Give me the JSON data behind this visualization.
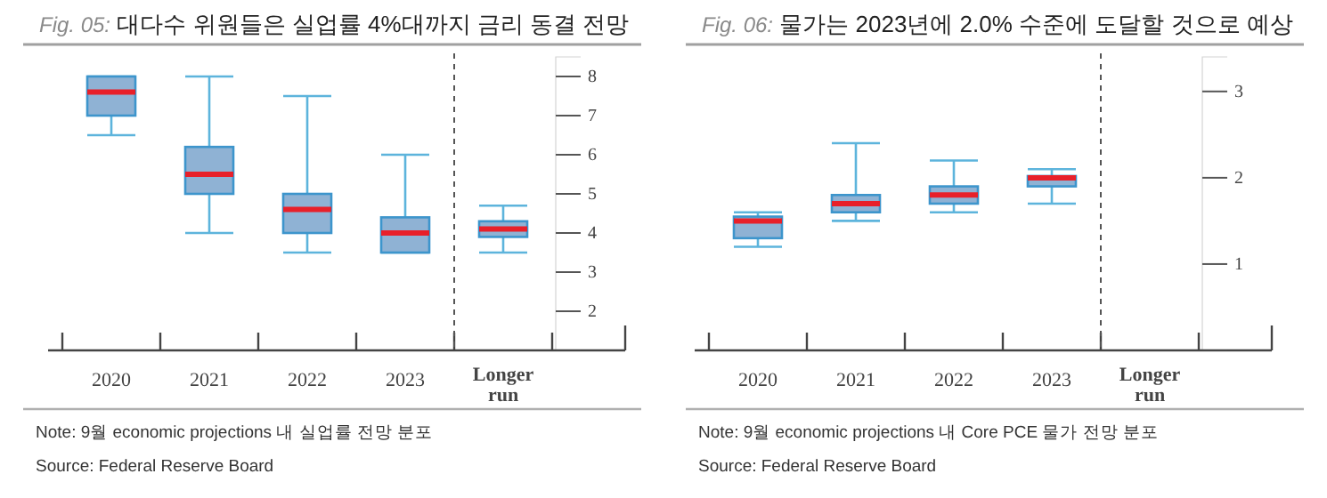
{
  "chart_data": [
    {
      "type": "box",
      "title": "Fig. 05: 대다수 위원들은 실업률 4%대까지 금리 동결 전망",
      "categories": [
        "2020",
        "2021",
        "2022",
        "2023",
        "Longer run"
      ],
      "ylim": [
        1,
        8.5
      ],
      "yticks": [
        2,
        3,
        4,
        5,
        6,
        7,
        8
      ],
      "grid": false,
      "series": [
        {
          "color": "#8fb2d4",
          "boxes": [
            {
              "low": 6.5,
              "q1": 7.0,
              "median": 7.6,
              "q3": 8.0,
              "high": 8.0
            },
            {
              "low": 4.0,
              "q1": 5.0,
              "median": 5.5,
              "q3": 6.2,
              "high": 8.0
            },
            {
              "low": 3.5,
              "q1": 4.0,
              "median": 4.6,
              "q3": 5.0,
              "high": 7.5
            },
            {
              "low": 3.5,
              "q1": 3.5,
              "median": 4.0,
              "q3": 4.4,
              "high": 6.0
            },
            {
              "low": 3.5,
              "q1": 3.9,
              "median": 4.1,
              "q3": 4.3,
              "high": 4.7
            }
          ]
        }
      ],
      "annotations": [
        "Note: 9월 economic projections 내 실업률 전망 분포",
        "Source: Federal Reserve Board"
      ]
    },
    {
      "type": "box",
      "title": "Fig. 06: 물가는 2023년에 2.0% 수준에 도달할 것으로 예상",
      "categories": [
        "2020",
        "2021",
        "2022",
        "2023",
        "Longer run"
      ],
      "ylim": [
        0,
        3.4
      ],
      "yticks": [
        1,
        2,
        3
      ],
      "grid": false,
      "series": [
        {
          "color": "#8fb2d4",
          "boxes": [
            {
              "low": 1.2,
              "q1": 1.3,
              "median": 1.5,
              "q3": 1.55,
              "high": 1.6
            },
            {
              "low": 1.5,
              "q1": 1.6,
              "median": 1.7,
              "q3": 1.8,
              "high": 2.4
            },
            {
              "low": 1.6,
              "q1": 1.7,
              "median": 1.8,
              "q3": 1.9,
              "high": 2.2
            },
            {
              "low": 1.7,
              "q1": 1.9,
              "median": 2.0,
              "q3": 2.02,
              "high": 2.1
            },
            null
          ]
        }
      ],
      "annotations": [
        "Note: 9월 economic projections 내 Core PCE 물가 전망 분포",
        "Source: Federal Reserve Board"
      ]
    }
  ]
}
